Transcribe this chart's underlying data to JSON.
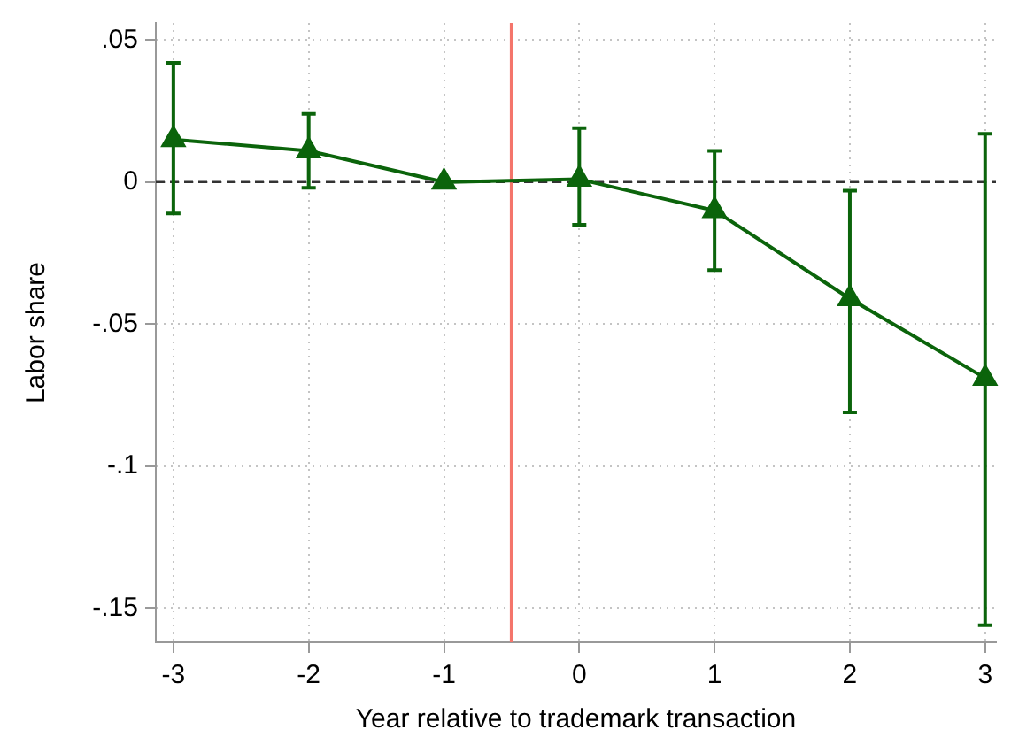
{
  "chart_data": {
    "type": "line",
    "xlabel": "Year relative to trademark transaction",
    "ylabel": "Labor share",
    "x": [
      -3,
      -2,
      -1,
      0,
      1,
      2,
      3
    ],
    "series": [
      {
        "color": "#0b640b",
        "values": [
          0.015,
          0.011,
          0,
          0.001,
          -0.01,
          -0.041,
          -0.069
        ],
        "errors": [
          [
            -0.011,
            0.042
          ],
          [
            -0.002,
            0.024
          ],
          null,
          [
            -0.015,
            0.019
          ],
          [
            -0.031,
            0.011
          ],
          [
            -0.081,
            -0.003
          ],
          [
            -0.156,
            0.017
          ]
        ]
      }
    ],
    "xlim": [
      -3.13,
      3.08
    ],
    "xticks": [
      -3,
      -2,
      -1,
      0,
      1,
      2,
      3
    ],
    "ylim": [
      -0.162,
      0.056
    ],
    "yticks": [
      {
        "value": 0.05,
        "label": ".05"
      },
      0,
      {
        "value": -0.05,
        "label": "-.05"
      },
      {
        "value": -0.1,
        "label": "-.1"
      },
      {
        "value": -0.15,
        "label": "-.15"
      }
    ],
    "ref_lines": [
      {
        "axis": "y",
        "value": 0,
        "color": "#333333",
        "line_style": "dashed"
      },
      {
        "axis": "x",
        "value": -0.5,
        "color": "#f4756b",
        "line_style": "solid"
      }
    ],
    "grid": true,
    "legend": false,
    "marker": "triangle",
    "line_style": "solid"
  }
}
